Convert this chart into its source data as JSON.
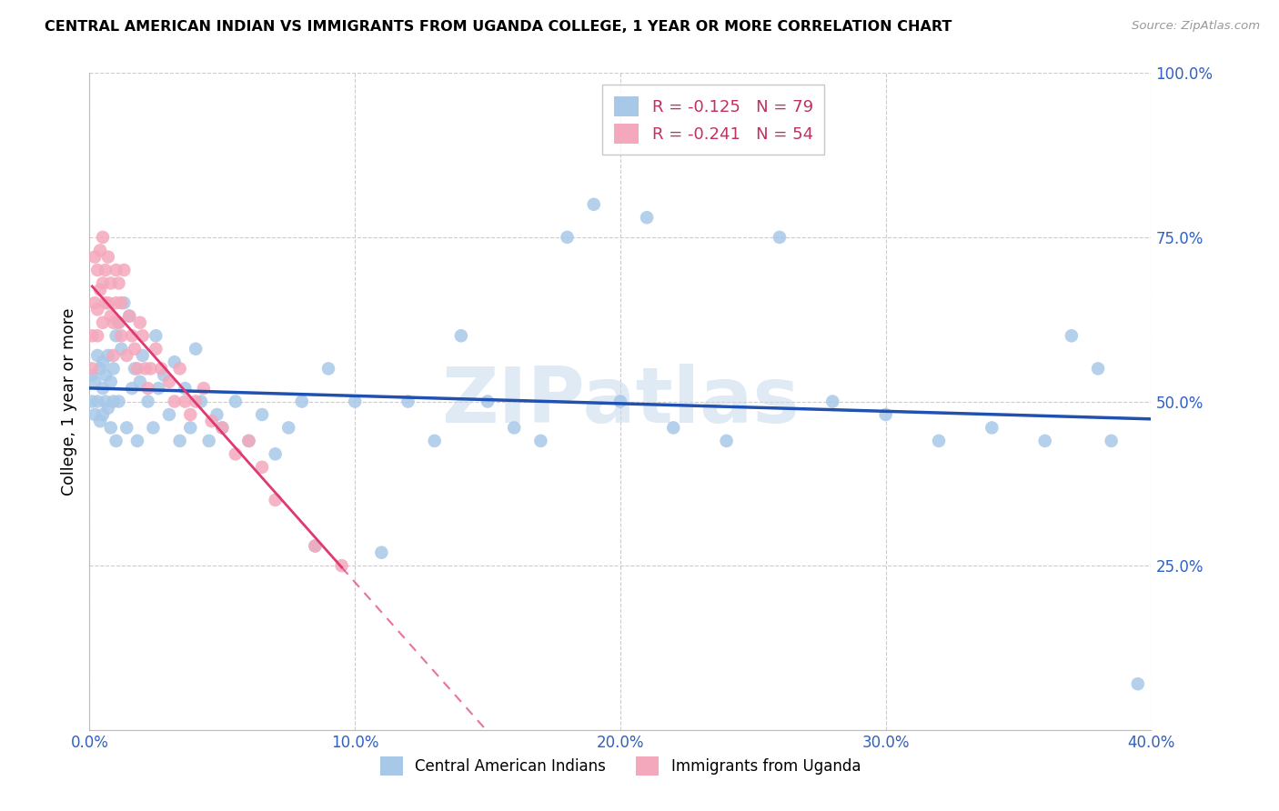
{
  "title": "CENTRAL AMERICAN INDIAN VS IMMIGRANTS FROM UGANDA COLLEGE, 1 YEAR OR MORE CORRELATION CHART",
  "source": "Source: ZipAtlas.com",
  "ylabel": "College, 1 year or more",
  "xlim": [
    0.0,
    0.4
  ],
  "ylim": [
    0.0,
    1.0
  ],
  "xticks": [
    0.0,
    0.1,
    0.2,
    0.3,
    0.4
  ],
  "yticks": [
    0.0,
    0.25,
    0.5,
    0.75,
    1.0
  ],
  "xticklabels": [
    "0.0%",
    "10.0%",
    "20.0%",
    "30.0%",
    "40.0%"
  ],
  "yticklabels": [
    "",
    "25.0%",
    "50.0%",
    "75.0%",
    "100.0%"
  ],
  "r_blue": -0.125,
  "n_blue": 79,
  "r_pink": -0.241,
  "n_pink": 54,
  "legend_label_blue": "Central American Indians",
  "legend_label_pink": "Immigrants from Uganda",
  "blue_scatter_color": "#a8c8e8",
  "pink_scatter_color": "#f4a8bc",
  "line_blue_color": "#2050b0",
  "line_pink_color": "#e03870",
  "axis_tick_color": "#3060c0",
  "watermark_text": "ZIPatlas",
  "blue_x": [
    0.001,
    0.001,
    0.002,
    0.002,
    0.003,
    0.003,
    0.004,
    0.004,
    0.005,
    0.005,
    0.005,
    0.006,
    0.006,
    0.007,
    0.007,
    0.008,
    0.008,
    0.009,
    0.009,
    0.01,
    0.01,
    0.011,
    0.011,
    0.012,
    0.013,
    0.014,
    0.015,
    0.016,
    0.017,
    0.018,
    0.019,
    0.02,
    0.022,
    0.024,
    0.025,
    0.026,
    0.028,
    0.03,
    0.032,
    0.034,
    0.036,
    0.038,
    0.04,
    0.042,
    0.045,
    0.048,
    0.05,
    0.055,
    0.06,
    0.065,
    0.07,
    0.075,
    0.08,
    0.085,
    0.09,
    0.1,
    0.11,
    0.12,
    0.13,
    0.14,
    0.15,
    0.16,
    0.17,
    0.18,
    0.19,
    0.2,
    0.21,
    0.22,
    0.24,
    0.26,
    0.28,
    0.3,
    0.32,
    0.34,
    0.36,
    0.37,
    0.38,
    0.385,
    0.395
  ],
  "blue_y": [
    0.54,
    0.5,
    0.53,
    0.48,
    0.57,
    0.5,
    0.55,
    0.47,
    0.56,
    0.52,
    0.48,
    0.54,
    0.5,
    0.57,
    0.49,
    0.53,
    0.46,
    0.55,
    0.5,
    0.6,
    0.44,
    0.62,
    0.5,
    0.58,
    0.65,
    0.46,
    0.63,
    0.52,
    0.55,
    0.44,
    0.53,
    0.57,
    0.5,
    0.46,
    0.6,
    0.52,
    0.54,
    0.48,
    0.56,
    0.44,
    0.52,
    0.46,
    0.58,
    0.5,
    0.44,
    0.48,
    0.46,
    0.5,
    0.44,
    0.48,
    0.42,
    0.46,
    0.5,
    0.28,
    0.55,
    0.5,
    0.27,
    0.5,
    0.44,
    0.6,
    0.5,
    0.46,
    0.44,
    0.75,
    0.8,
    0.5,
    0.78,
    0.46,
    0.44,
    0.75,
    0.5,
    0.48,
    0.44,
    0.46,
    0.44,
    0.6,
    0.55,
    0.44,
    0.07
  ],
  "pink_x": [
    0.001,
    0.001,
    0.002,
    0.002,
    0.003,
    0.003,
    0.003,
    0.004,
    0.004,
    0.005,
    0.005,
    0.005,
    0.006,
    0.006,
    0.007,
    0.007,
    0.008,
    0.008,
    0.009,
    0.009,
    0.01,
    0.01,
    0.011,
    0.011,
    0.012,
    0.012,
    0.013,
    0.014,
    0.015,
    0.016,
    0.017,
    0.018,
    0.019,
    0.02,
    0.021,
    0.022,
    0.023,
    0.025,
    0.027,
    0.03,
    0.032,
    0.034,
    0.036,
    0.038,
    0.04,
    0.043,
    0.046,
    0.05,
    0.055,
    0.06,
    0.065,
    0.07,
    0.085,
    0.095
  ],
  "pink_y": [
    0.6,
    0.55,
    0.72,
    0.65,
    0.7,
    0.64,
    0.6,
    0.73,
    0.67,
    0.75,
    0.68,
    0.62,
    0.7,
    0.65,
    0.72,
    0.65,
    0.68,
    0.63,
    0.62,
    0.57,
    0.7,
    0.65,
    0.68,
    0.62,
    0.65,
    0.6,
    0.7,
    0.57,
    0.63,
    0.6,
    0.58,
    0.55,
    0.62,
    0.6,
    0.55,
    0.52,
    0.55,
    0.58,
    0.55,
    0.53,
    0.5,
    0.55,
    0.5,
    0.48,
    0.5,
    0.52,
    0.47,
    0.46,
    0.42,
    0.44,
    0.4,
    0.35,
    0.28,
    0.25
  ]
}
